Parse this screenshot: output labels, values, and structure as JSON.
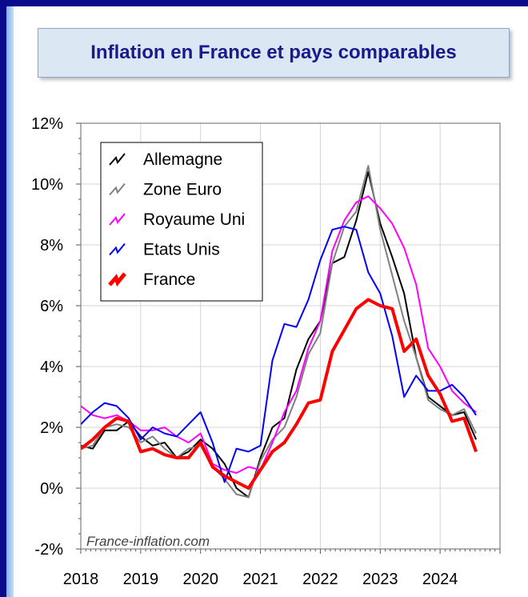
{
  "title": "Inflation en France et pays comparables",
  "watermark": "France-inflation.com",
  "chart_data": {
    "type": "line",
    "title": "Inflation en France et pays comparables",
    "xlabel": "",
    "ylabel": "",
    "xlim": [
      2018.0,
      2025.0
    ],
    "ylim": [
      -2,
      12
    ],
    "x_ticks": [
      {
        "value": 2018,
        "label": "2018"
      },
      {
        "value": 2019,
        "label": "2019"
      },
      {
        "value": 2020,
        "label": "2020"
      },
      {
        "value": 2021,
        "label": "2021"
      },
      {
        "value": 2022,
        "label": "2022"
      },
      {
        "value": 2023,
        "label": "2023"
      },
      {
        "value": 2024,
        "label": "2024"
      }
    ],
    "y_ticks": [
      {
        "value": 12,
        "label": "12%"
      },
      {
        "value": 10,
        "label": "10%"
      },
      {
        "value": 8,
        "label": "8%"
      },
      {
        "value": 6,
        "label": "6%"
      },
      {
        "value": 4,
        "label": "4%"
      },
      {
        "value": 2,
        "label": "2%"
      },
      {
        "value": 0,
        "label": "0%"
      },
      {
        "value": -2,
        "label": "-2%"
      }
    ],
    "grid": true,
    "legend_position": "top-left",
    "series": [
      {
        "name": "Allemagne",
        "color": "#000000",
        "width": 2,
        "points": [
          [
            2018.0,
            1.4
          ],
          [
            2018.2,
            1.3
          ],
          [
            2018.4,
            1.9
          ],
          [
            2018.6,
            1.9
          ],
          [
            2018.8,
            2.2
          ],
          [
            2019.0,
            1.7
          ],
          [
            2019.2,
            1.4
          ],
          [
            2019.4,
            1.5
          ],
          [
            2019.6,
            1.0
          ],
          [
            2019.8,
            1.2
          ],
          [
            2020.0,
            1.6
          ],
          [
            2020.2,
            1.3
          ],
          [
            2020.4,
            0.8
          ],
          [
            2020.6,
            0.0
          ],
          [
            2020.8,
            -0.3
          ],
          [
            2021.0,
            1.0
          ],
          [
            2021.2,
            2.0
          ],
          [
            2021.4,
            2.3
          ],
          [
            2021.6,
            3.9
          ],
          [
            2021.8,
            4.9
          ],
          [
            2022.0,
            5.5
          ],
          [
            2022.2,
            7.4
          ],
          [
            2022.4,
            7.6
          ],
          [
            2022.6,
            8.8
          ],
          [
            2022.8,
            10.4
          ],
          [
            2023.0,
            8.7
          ],
          [
            2023.2,
            7.6
          ],
          [
            2023.4,
            6.4
          ],
          [
            2023.6,
            4.3
          ],
          [
            2023.8,
            3.0
          ],
          [
            2024.0,
            2.7
          ],
          [
            2024.2,
            2.4
          ],
          [
            2024.4,
            2.5
          ],
          [
            2024.6,
            1.6
          ]
        ]
      },
      {
        "name": "Zone Euro",
        "color": "#808080",
        "width": 2,
        "points": [
          [
            2018.0,
            1.3
          ],
          [
            2018.2,
            1.4
          ],
          [
            2018.4,
            2.0
          ],
          [
            2018.6,
            2.1
          ],
          [
            2018.8,
            2.0
          ],
          [
            2019.0,
            1.5
          ],
          [
            2019.2,
            1.7
          ],
          [
            2019.4,
            1.3
          ],
          [
            2019.6,
            1.0
          ],
          [
            2019.8,
            1.3
          ],
          [
            2020.0,
            1.4
          ],
          [
            2020.2,
            0.7
          ],
          [
            2020.4,
            0.3
          ],
          [
            2020.6,
            -0.2
          ],
          [
            2020.8,
            -0.3
          ],
          [
            2021.0,
            0.9
          ],
          [
            2021.2,
            1.6
          ],
          [
            2021.4,
            2.0
          ],
          [
            2021.6,
            3.0
          ],
          [
            2021.8,
            4.4
          ],
          [
            2022.0,
            5.1
          ],
          [
            2022.2,
            7.4
          ],
          [
            2022.4,
            8.6
          ],
          [
            2022.6,
            9.1
          ],
          [
            2022.8,
            10.6
          ],
          [
            2023.0,
            8.5
          ],
          [
            2023.2,
            7.0
          ],
          [
            2023.4,
            5.5
          ],
          [
            2023.6,
            4.3
          ],
          [
            2023.8,
            2.9
          ],
          [
            2024.0,
            2.6
          ],
          [
            2024.2,
            2.4
          ],
          [
            2024.4,
            2.6
          ],
          [
            2024.6,
            1.8
          ]
        ]
      },
      {
        "name": "Royaume Uni",
        "color": "#ff00ff",
        "width": 2,
        "points": [
          [
            2018.0,
            2.7
          ],
          [
            2018.2,
            2.4
          ],
          [
            2018.4,
            2.3
          ],
          [
            2018.6,
            2.4
          ],
          [
            2018.8,
            2.2
          ],
          [
            2019.0,
            1.9
          ],
          [
            2019.2,
            1.9
          ],
          [
            2019.4,
            2.0
          ],
          [
            2019.6,
            1.7
          ],
          [
            2019.8,
            1.5
          ],
          [
            2020.0,
            1.8
          ],
          [
            2020.2,
            0.8
          ],
          [
            2020.4,
            0.6
          ],
          [
            2020.6,
            0.5
          ],
          [
            2020.8,
            0.7
          ],
          [
            2021.0,
            0.6
          ],
          [
            2021.2,
            1.5
          ],
          [
            2021.4,
            2.5
          ],
          [
            2021.6,
            3.2
          ],
          [
            2021.8,
            4.6
          ],
          [
            2022.0,
            5.5
          ],
          [
            2022.2,
            7.8
          ],
          [
            2022.4,
            8.8
          ],
          [
            2022.6,
            9.4
          ],
          [
            2022.8,
            9.6
          ],
          [
            2023.0,
            9.2
          ],
          [
            2023.2,
            8.7
          ],
          [
            2023.4,
            7.9
          ],
          [
            2023.6,
            6.7
          ],
          [
            2023.8,
            4.6
          ],
          [
            2024.0,
            4.0
          ],
          [
            2024.2,
            3.2
          ],
          [
            2024.4,
            2.8
          ],
          [
            2024.6,
            2.5
          ]
        ]
      },
      {
        "name": "Etats Unis",
        "color": "#0000ff",
        "width": 2,
        "points": [
          [
            2018.0,
            2.1
          ],
          [
            2018.2,
            2.5
          ],
          [
            2018.4,
            2.8
          ],
          [
            2018.6,
            2.7
          ],
          [
            2018.8,
            2.3
          ],
          [
            2019.0,
            1.6
          ],
          [
            2019.2,
            2.0
          ],
          [
            2019.4,
            1.8
          ],
          [
            2019.6,
            1.7
          ],
          [
            2019.8,
            2.1
          ],
          [
            2020.0,
            2.5
          ],
          [
            2020.2,
            1.5
          ],
          [
            2020.4,
            0.2
          ],
          [
            2020.6,
            1.3
          ],
          [
            2020.8,
            1.2
          ],
          [
            2021.0,
            1.4
          ],
          [
            2021.2,
            4.2
          ],
          [
            2021.4,
            5.4
          ],
          [
            2021.6,
            5.3
          ],
          [
            2021.8,
            6.2
          ],
          [
            2022.0,
            7.5
          ],
          [
            2022.2,
            8.5
          ],
          [
            2022.4,
            8.6
          ],
          [
            2022.6,
            8.5
          ],
          [
            2022.8,
            7.1
          ],
          [
            2023.0,
            6.4
          ],
          [
            2023.2,
            5.0
          ],
          [
            2023.4,
            3.0
          ],
          [
            2023.6,
            3.7
          ],
          [
            2023.8,
            3.2
          ],
          [
            2024.0,
            3.2
          ],
          [
            2024.2,
            3.4
          ],
          [
            2024.4,
            3.0
          ],
          [
            2024.6,
            2.4
          ]
        ]
      },
      {
        "name": "France",
        "color": "#ff0000",
        "width": 4,
        "points": [
          [
            2018.0,
            1.3
          ],
          [
            2018.2,
            1.6
          ],
          [
            2018.4,
            2.0
          ],
          [
            2018.6,
            2.3
          ],
          [
            2018.8,
            2.2
          ],
          [
            2019.0,
            1.2
          ],
          [
            2019.2,
            1.3
          ],
          [
            2019.4,
            1.1
          ],
          [
            2019.6,
            1.0
          ],
          [
            2019.8,
            1.0
          ],
          [
            2020.0,
            1.5
          ],
          [
            2020.2,
            0.7
          ],
          [
            2020.4,
            0.4
          ],
          [
            2020.6,
            0.2
          ],
          [
            2020.8,
            0.0
          ],
          [
            2021.0,
            0.6
          ],
          [
            2021.2,
            1.2
          ],
          [
            2021.4,
            1.5
          ],
          [
            2021.6,
            2.1
          ],
          [
            2021.8,
            2.8
          ],
          [
            2022.0,
            2.9
          ],
          [
            2022.2,
            4.5
          ],
          [
            2022.4,
            5.2
          ],
          [
            2022.6,
            5.9
          ],
          [
            2022.8,
            6.2
          ],
          [
            2023.0,
            6.0
          ],
          [
            2023.2,
            5.9
          ],
          [
            2023.4,
            4.5
          ],
          [
            2023.6,
            4.9
          ],
          [
            2023.8,
            3.7
          ],
          [
            2024.0,
            3.1
          ],
          [
            2024.2,
            2.2
          ],
          [
            2024.4,
            2.3
          ],
          [
            2024.6,
            1.2
          ]
        ]
      }
    ]
  }
}
